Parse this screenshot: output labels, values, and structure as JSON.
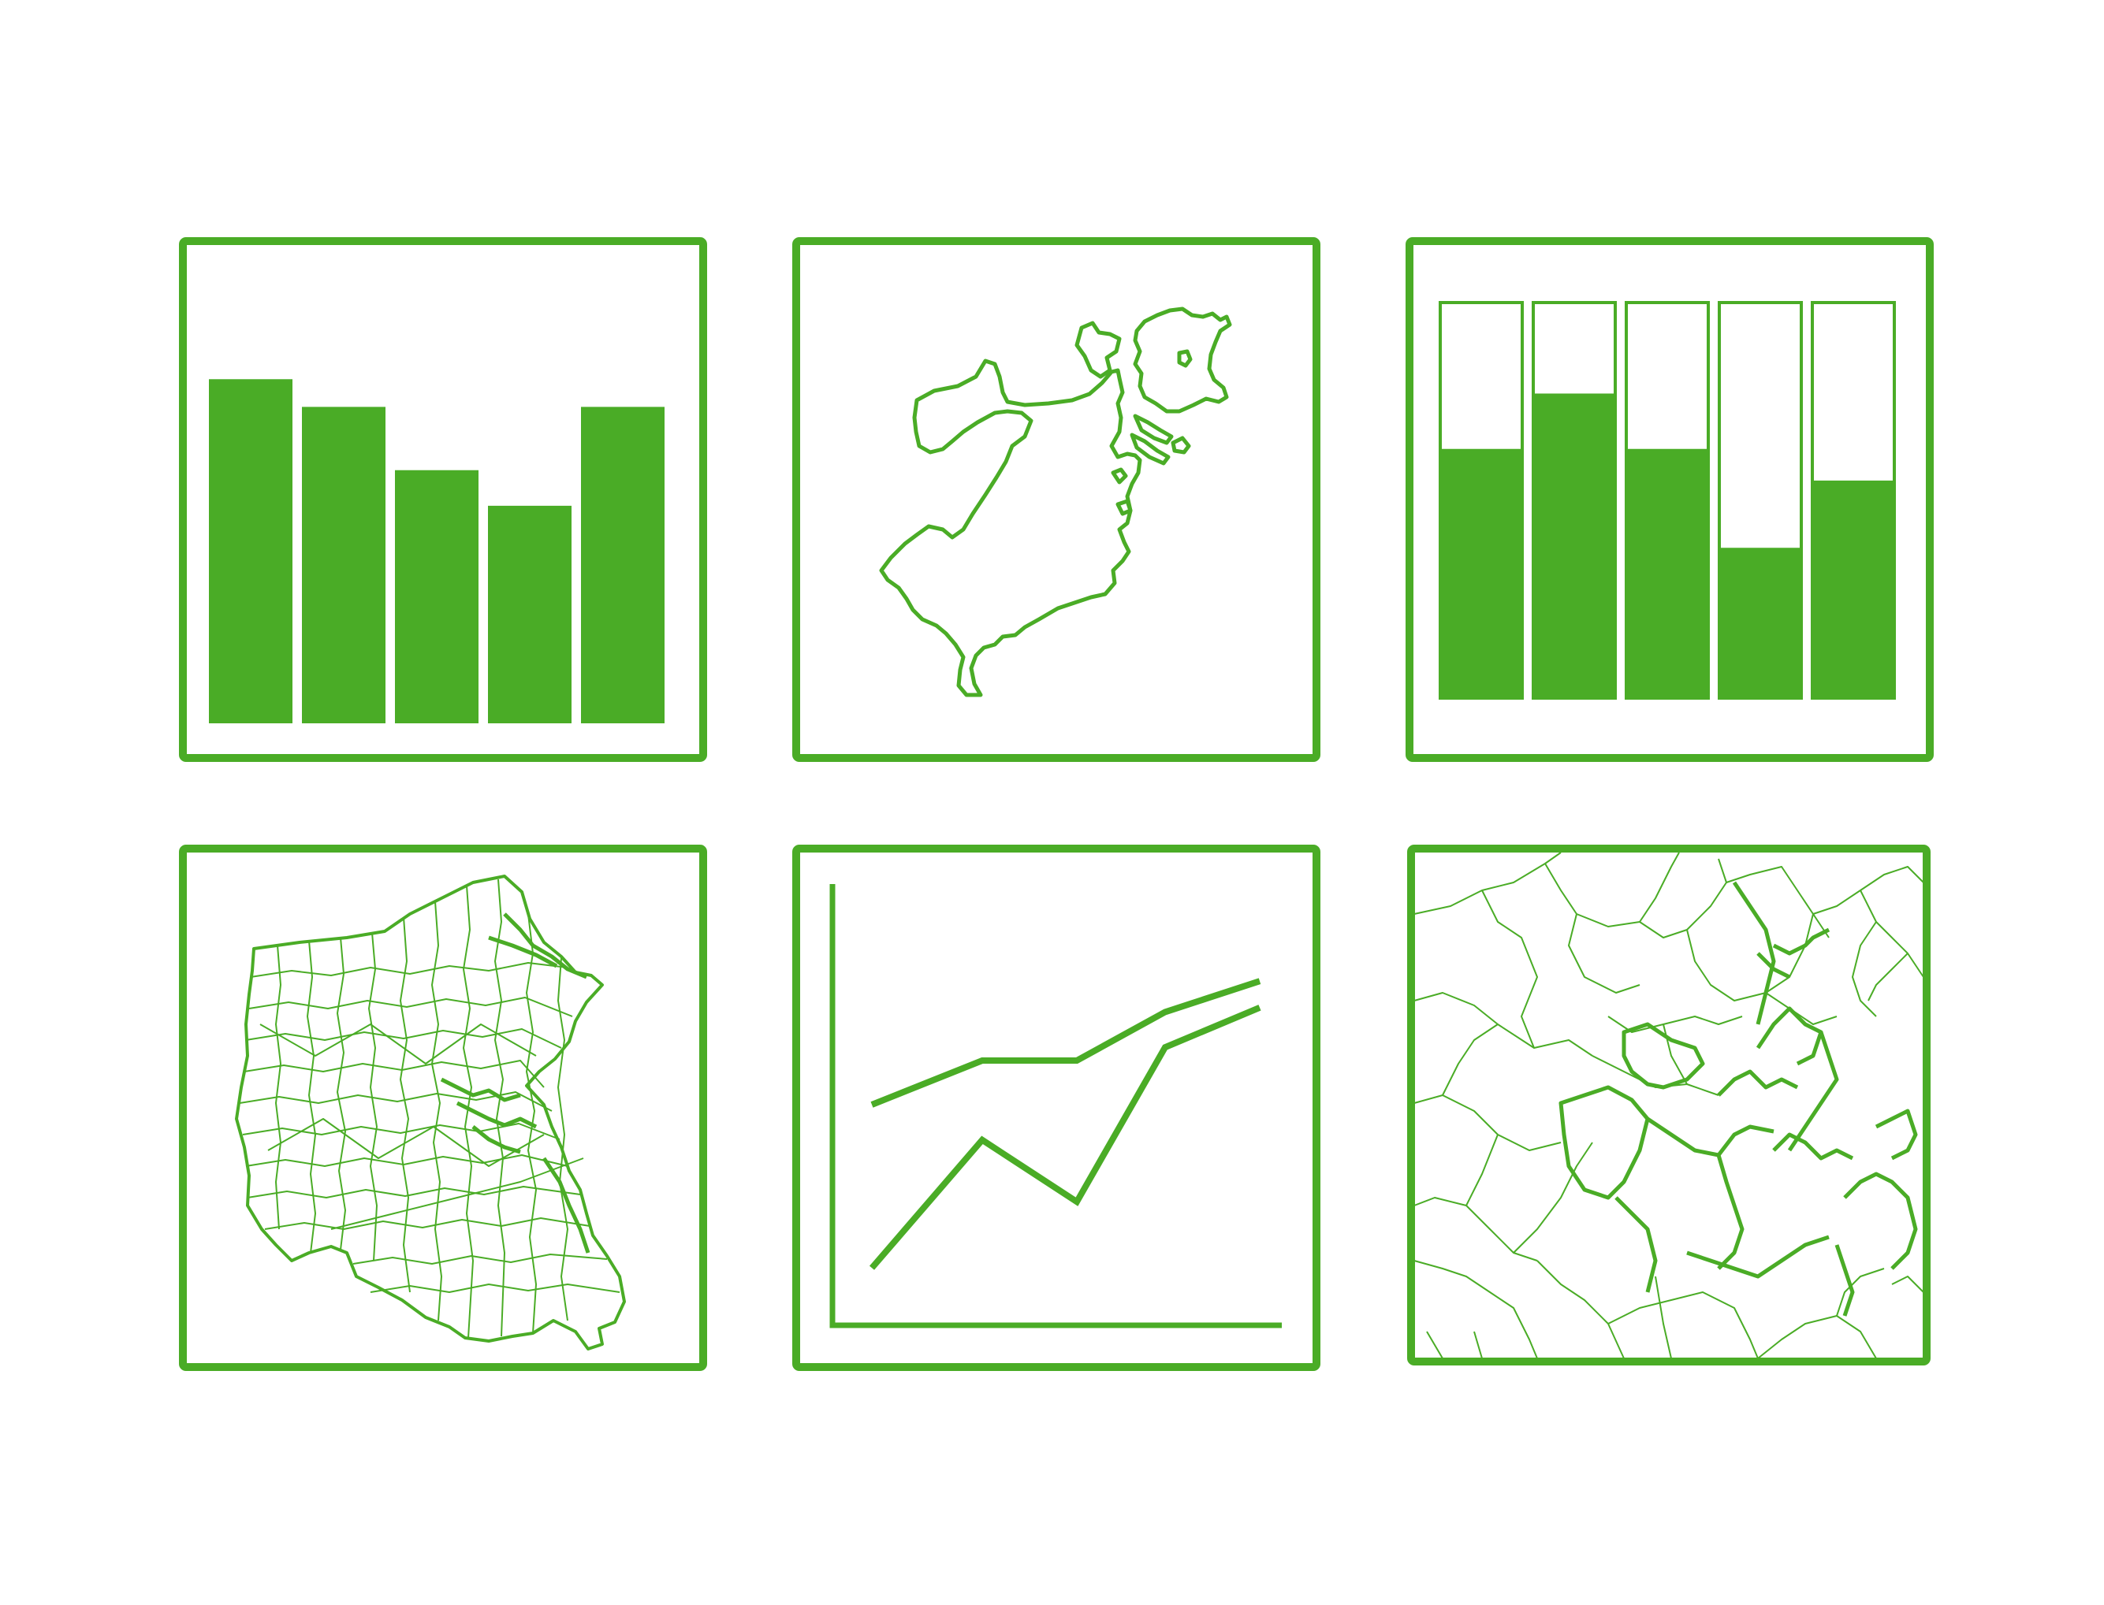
{
  "colors": {
    "accent": "#4aac26",
    "background": "#ffffff"
  },
  "icons": [
    {
      "name": "bar-chart-icon",
      "chart": {
        "type": "bar",
        "values": [
          0.87,
          0.8,
          0.64,
          0.55,
          0.8
        ]
      }
    },
    {
      "name": "city-outline-map-icon"
    },
    {
      "name": "stacked-bar-chart-icon",
      "chart": {
        "type": "bar",
        "values": [
          0.63,
          0.77,
          0.63,
          0.38,
          0.55
        ]
      }
    },
    {
      "name": "region-towns-map-icon"
    },
    {
      "name": "line-chart-icon",
      "chart": {
        "type": "line",
        "series": [
          {
            "values": [
              0.5,
              0.6,
              0.6,
              0.71,
              0.78
            ]
          },
          {
            "values": [
              0.13,
              0.42,
              0.28,
              0.63,
              0.72
            ]
          }
        ]
      }
    },
    {
      "name": "zoomed-boundaries-map-icon"
    }
  ]
}
